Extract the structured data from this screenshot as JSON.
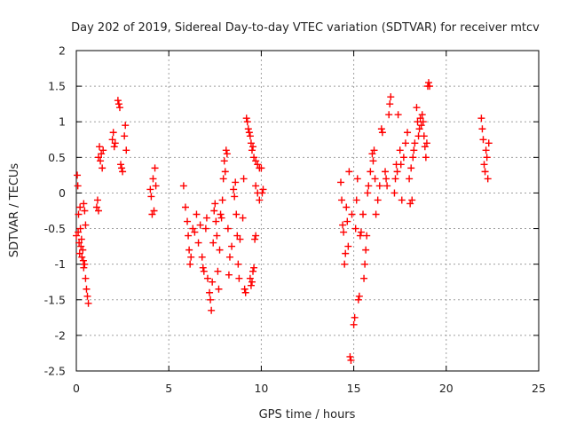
{
  "chart_data": {
    "type": "scatter",
    "title": "Day 202 of 2019, Sidereal Day-to-day VTEC variation (SDTVAR) for receiver mtcv",
    "xlabel": "GPS time / hours",
    "ylabel": "SDTVAR / TECUs",
    "xlim": [
      0,
      25
    ],
    "ylim": [
      -2.5,
      2
    ],
    "xticks": [
      0,
      5,
      10,
      15,
      20,
      25
    ],
    "yticks": [
      -2.5,
      -2,
      -1.5,
      -1,
      -0.5,
      0,
      0.5,
      1,
      1.5,
      2
    ],
    "grid": true,
    "marker": "+",
    "color": "#ff0000",
    "series": [
      {
        "name": "mtcv",
        "points": [
          [
            0.0,
            -0.6
          ],
          [
            0.05,
            0.25
          ],
          [
            0.08,
            0.1
          ],
          [
            0.1,
            -0.55
          ],
          [
            0.12,
            -0.3
          ],
          [
            0.15,
            -0.7
          ],
          [
            0.18,
            -0.85
          ],
          [
            0.2,
            -0.2
          ],
          [
            0.22,
            -0.5
          ],
          [
            0.25,
            -0.75
          ],
          [
            0.28,
            -0.65
          ],
          [
            0.3,
            -0.9
          ],
          [
            0.35,
            -0.8
          ],
          [
            0.38,
            -0.95
          ],
          [
            0.4,
            -1.05
          ],
          [
            0.45,
            -1.0
          ],
          [
            0.5,
            -1.2
          ],
          [
            0.55,
            -1.35
          ],
          [
            0.6,
            -1.45
          ],
          [
            0.65,
            -1.55
          ],
          [
            0.4,
            -0.15
          ],
          [
            0.45,
            -0.25
          ],
          [
            0.5,
            -0.45
          ],
          [
            1.1,
            -0.2
          ],
          [
            1.15,
            -0.1
          ],
          [
            1.2,
            -0.25
          ],
          [
            1.2,
            0.5
          ],
          [
            1.25,
            0.65
          ],
          [
            1.3,
            0.45
          ],
          [
            1.35,
            0.55
          ],
          [
            1.4,
            0.35
          ],
          [
            1.45,
            0.6
          ],
          [
            1.95,
            0.75
          ],
          [
            2.0,
            0.85
          ],
          [
            2.05,
            0.65
          ],
          [
            2.1,
            0.7
          ],
          [
            2.25,
            1.3
          ],
          [
            2.3,
            1.25
          ],
          [
            2.35,
            1.2
          ],
          [
            2.4,
            0.4
          ],
          [
            2.45,
            0.35
          ],
          [
            2.5,
            0.3
          ],
          [
            2.6,
            0.8
          ],
          [
            2.65,
            0.95
          ],
          [
            2.7,
            0.6
          ],
          [
            4.0,
            0.05
          ],
          [
            4.05,
            -0.05
          ],
          [
            4.1,
            -0.3
          ],
          [
            4.15,
            0.2
          ],
          [
            4.2,
            -0.25
          ],
          [
            4.25,
            0.35
          ],
          [
            4.3,
            0.1
          ],
          [
            5.8,
            0.1
          ],
          [
            5.9,
            -0.2
          ],
          [
            6.0,
            -0.4
          ],
          [
            6.05,
            -0.6
          ],
          [
            6.1,
            -0.8
          ],
          [
            6.15,
            -1.0
          ],
          [
            6.2,
            -0.9
          ],
          [
            6.3,
            -0.5
          ],
          [
            6.4,
            -0.55
          ],
          [
            6.5,
            -0.3
          ],
          [
            6.6,
            -0.7
          ],
          [
            6.7,
            -0.45
          ],
          [
            6.8,
            -0.9
          ],
          [
            6.85,
            -1.05
          ],
          [
            6.9,
            -1.1
          ],
          [
            7.0,
            -0.5
          ],
          [
            7.05,
            -0.35
          ],
          [
            7.1,
            -1.2
          ],
          [
            7.2,
            -1.4
          ],
          [
            7.25,
            -1.5
          ],
          [
            7.3,
            -1.65
          ],
          [
            7.35,
            -1.25
          ],
          [
            7.4,
            -0.7
          ],
          [
            7.45,
            -0.25
          ],
          [
            7.5,
            -0.15
          ],
          [
            7.55,
            -0.4
          ],
          [
            7.6,
            -0.6
          ],
          [
            7.65,
            -1.1
          ],
          [
            7.7,
            -1.35
          ],
          [
            7.75,
            -0.8
          ],
          [
            7.8,
            -0.3
          ],
          [
            7.85,
            -0.35
          ],
          [
            7.9,
            -0.1
          ],
          [
            7.95,
            0.2
          ],
          [
            8.0,
            0.45
          ],
          [
            8.05,
            0.3
          ],
          [
            8.1,
            0.6
          ],
          [
            8.15,
            0.55
          ],
          [
            8.2,
            -0.5
          ],
          [
            8.25,
            -1.15
          ],
          [
            8.3,
            -0.9
          ],
          [
            8.4,
            -0.75
          ],
          [
            8.5,
            0.05
          ],
          [
            8.55,
            -0.05
          ],
          [
            8.6,
            0.15
          ],
          [
            8.65,
            -0.3
          ],
          [
            8.7,
            -0.6
          ],
          [
            8.75,
            -1.0
          ],
          [
            8.8,
            -1.2
          ],
          [
            8.85,
            -0.65
          ],
          [
            9.0,
            -0.35
          ],
          [
            9.05,
            0.2
          ],
          [
            9.1,
            -1.35
          ],
          [
            9.15,
            -1.4
          ],
          [
            9.2,
            1.05
          ],
          [
            9.25,
            1.0
          ],
          [
            9.3,
            0.9
          ],
          [
            9.35,
            0.85
          ],
          [
            9.4,
            0.8
          ],
          [
            9.45,
            0.7
          ],
          [
            9.5,
            0.6
          ],
          [
            9.55,
            0.65
          ],
          [
            9.6,
            0.5
          ],
          [
            9.7,
            0.45
          ],
          [
            9.8,
            0.4
          ],
          [
            9.9,
            0.35
          ],
          [
            10.0,
            0.35
          ],
          [
            10.05,
            0.0
          ],
          [
            10.1,
            0.05
          ],
          [
            9.7,
            0.1
          ],
          [
            9.8,
            0.0
          ],
          [
            9.9,
            -0.1
          ],
          [
            9.4,
            -1.2
          ],
          [
            9.45,
            -1.3
          ],
          [
            9.5,
            -1.25
          ],
          [
            9.55,
            -1.1
          ],
          [
            9.6,
            -1.05
          ],
          [
            9.65,
            -0.65
          ],
          [
            9.7,
            -0.6
          ],
          [
            14.3,
            0.15
          ],
          [
            14.35,
            -0.1
          ],
          [
            14.4,
            -0.45
          ],
          [
            14.45,
            -0.55
          ],
          [
            14.5,
            -1.0
          ],
          [
            14.55,
            -0.85
          ],
          [
            14.6,
            -0.2
          ],
          [
            14.65,
            -0.4
          ],
          [
            14.7,
            -0.75
          ],
          [
            14.75,
            0.3
          ],
          [
            14.8,
            -2.3
          ],
          [
            14.85,
            -2.35
          ],
          [
            14.9,
            -0.3
          ],
          [
            15.0,
            -1.85
          ],
          [
            15.05,
            -1.75
          ],
          [
            15.1,
            -0.5
          ],
          [
            15.15,
            -0.1
          ],
          [
            15.2,
            0.2
          ],
          [
            15.25,
            -1.5
          ],
          [
            15.3,
            -1.45
          ],
          [
            15.35,
            -0.6
          ],
          [
            15.4,
            -0.55
          ],
          [
            15.5,
            -0.3
          ],
          [
            15.55,
            -1.2
          ],
          [
            15.6,
            -1.0
          ],
          [
            15.65,
            -0.8
          ],
          [
            15.7,
            -0.6
          ],
          [
            15.75,
            0.0
          ],
          [
            15.8,
            0.1
          ],
          [
            15.9,
            0.3
          ],
          [
            16.0,
            0.55
          ],
          [
            16.05,
            0.45
          ],
          [
            16.1,
            0.6
          ],
          [
            16.15,
            0.2
          ],
          [
            16.2,
            -0.3
          ],
          [
            16.3,
            -0.1
          ],
          [
            16.4,
            0.1
          ],
          [
            16.5,
            0.9
          ],
          [
            16.55,
            0.85
          ],
          [
            16.7,
            0.3
          ],
          [
            16.75,
            0.2
          ],
          [
            16.8,
            0.1
          ],
          [
            16.9,
            1.1
          ],
          [
            16.95,
            1.25
          ],
          [
            17.0,
            1.35
          ],
          [
            17.2,
            0.0
          ],
          [
            17.25,
            0.2
          ],
          [
            17.3,
            0.4
          ],
          [
            17.35,
            0.3
          ],
          [
            17.4,
            1.1
          ],
          [
            17.5,
            0.6
          ],
          [
            17.55,
            0.4
          ],
          [
            17.6,
            -0.1
          ],
          [
            17.7,
            0.5
          ],
          [
            17.8,
            0.7
          ],
          [
            17.9,
            0.85
          ],
          [
            18.0,
            0.2
          ],
          [
            18.05,
            -0.15
          ],
          [
            18.1,
            0.35
          ],
          [
            18.15,
            -0.1
          ],
          [
            18.2,
            0.5
          ],
          [
            18.25,
            0.6
          ],
          [
            18.3,
            0.7
          ],
          [
            18.4,
            1.2
          ],
          [
            18.45,
            1.0
          ],
          [
            18.5,
            0.8
          ],
          [
            18.55,
            0.9
          ],
          [
            18.6,
            1.05
          ],
          [
            18.65,
            0.95
          ],
          [
            18.7,
            1.1
          ],
          [
            18.75,
            1.0
          ],
          [
            18.8,
            0.8
          ],
          [
            18.85,
            0.65
          ],
          [
            18.9,
            0.5
          ],
          [
            18.95,
            0.7
          ],
          [
            19.0,
            1.5
          ],
          [
            19.05,
            1.55
          ],
          [
            19.1,
            1.5
          ],
          [
            21.9,
            1.05
          ],
          [
            21.95,
            0.9
          ],
          [
            22.0,
            0.75
          ],
          [
            22.05,
            0.4
          ],
          [
            22.1,
            0.3
          ],
          [
            22.15,
            0.6
          ],
          [
            22.2,
            0.5
          ],
          [
            22.25,
            0.2
          ],
          [
            22.3,
            0.7
          ]
        ]
      }
    ]
  }
}
